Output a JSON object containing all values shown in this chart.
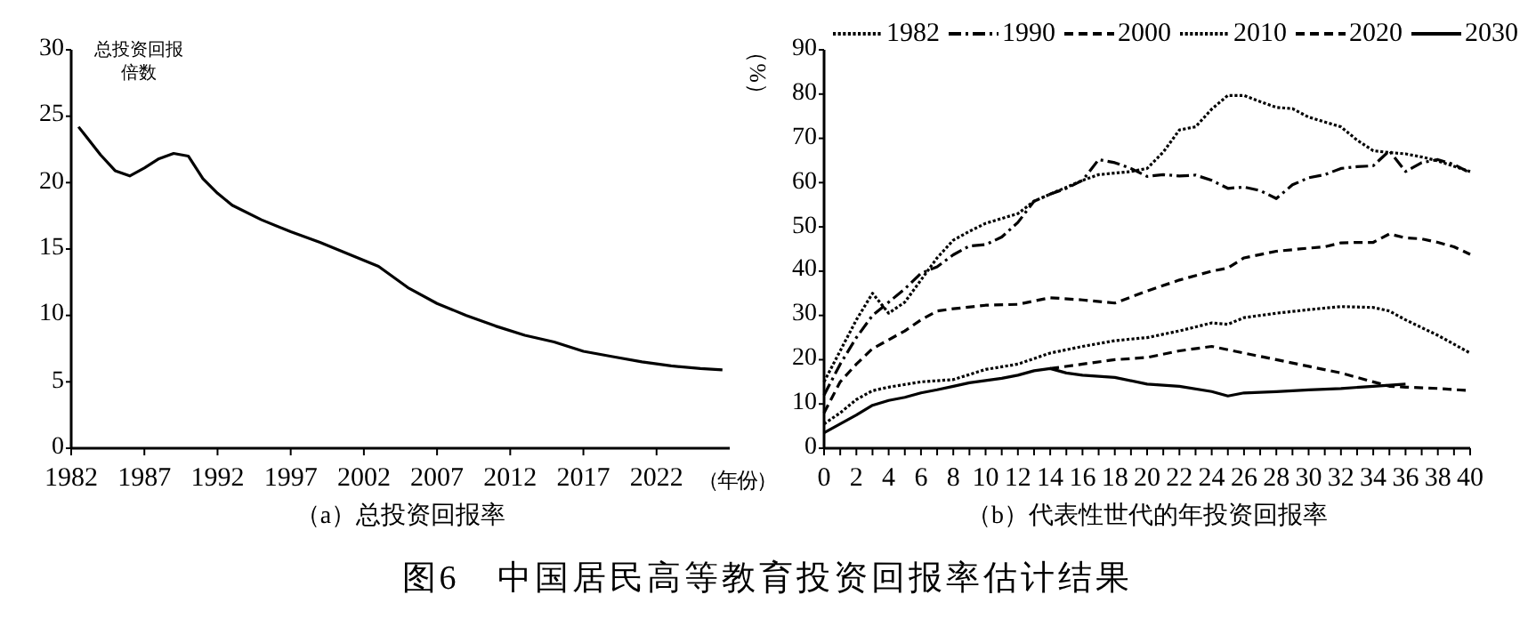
{
  "chart_data": [
    {
      "type": "line",
      "title": "（a）总投资回报率",
      "ylabel": "总投资回报倍数",
      "xlabel": "（年份）",
      "annotations": [
        "图6　中国居民高等教育投资回报率估计结果"
      ],
      "xlim": [
        1982,
        2027
      ],
      "xticks": [
        1982,
        1987,
        1992,
        1997,
        2002,
        2007,
        2012,
        2017,
        2022
      ],
      "ylim": [
        0,
        30
      ],
      "yticks": [
        0,
        5,
        10,
        15,
        20,
        25,
        30
      ],
      "legend": false,
      "series": [
        {
          "color": "#000000",
          "line_style": "solid",
          "x": [
            1982.5,
            1983,
            1984,
            1985,
            1986,
            1987,
            1988,
            1989,
            1990,
            1991,
            1992,
            1993,
            1995,
            1997,
            1999,
            2001,
            2003,
            2005,
            2007,
            2009,
            2011,
            2013,
            2015,
            2017,
            2019,
            2021,
            2023,
            2025,
            2026.5
          ],
          "values": [
            24.2,
            23.5,
            22.1,
            20.9,
            20.5,
            21.1,
            21.8,
            22.2,
            22.0,
            20.3,
            19.2,
            18.3,
            17.2,
            16.3,
            15.5,
            14.6,
            13.7,
            12.1,
            10.9,
            10.0,
            9.2,
            8.5,
            8.0,
            7.3,
            6.9,
            6.5,
            6.2,
            6.0,
            5.9
          ]
        }
      ]
    },
    {
      "type": "line",
      "title": "（b）代表性世代的年投资回报率",
      "ylabel": "（%）",
      "legend": "top",
      "xlim": [
        0,
        40
      ],
      "xticks": [
        0,
        {
          "value": 1,
          "label": null
        },
        2,
        {
          "value": 3,
          "label": null
        },
        4,
        {
          "value": 5,
          "label": null
        },
        6,
        {
          "value": 7,
          "label": null
        },
        8,
        {
          "value": 9,
          "label": null
        },
        10,
        {
          "value": 11,
          "label": null
        },
        12,
        {
          "value": 13,
          "label": null
        },
        14,
        {
          "value": 15,
          "label": null
        },
        16,
        {
          "value": 17,
          "label": null
        },
        18,
        {
          "value": 19,
          "label": null
        },
        20,
        {
          "value": 21,
          "label": null
        },
        22,
        {
          "value": 23,
          "label": null
        },
        24,
        {
          "value": 25,
          "label": null
        },
        26,
        {
          "value": 27,
          "label": null
        },
        28,
        {
          "value": 29,
          "label": null
        },
        30,
        {
          "value": 31,
          "label": null
        },
        32,
        {
          "value": 33,
          "label": null
        },
        34,
        {
          "value": 35,
          "label": null
        },
        36,
        {
          "value": 37,
          "label": null
        },
        38,
        {
          "value": 39,
          "label": null
        },
        40
      ],
      "ylim": [
        0,
        90
      ],
      "yticks": [
        0,
        10,
        20,
        30,
        40,
        50,
        60,
        70,
        80,
        90
      ],
      "series": [
        {
          "name": "1982",
          "color": "#000000",
          "line_style": "dotted",
          "x": [
            0,
            1,
            2,
            3,
            4,
            5,
            6,
            7,
            8,
            9,
            10,
            12,
            13,
            14,
            16,
            17,
            19,
            20,
            21,
            22,
            23,
            24,
            25,
            26,
            27,
            28,
            29,
            30,
            32,
            33,
            34,
            35,
            36,
            37,
            38,
            40
          ],
          "values": [
            15,
            22,
            29,
            35,
            30.5,
            33,
            38,
            43,
            47,
            49,
            50.8,
            53,
            55.8,
            57.4,
            60.5,
            61.8,
            62.5,
            63.2,
            66.9,
            71.9,
            72.6,
            76.6,
            79.7,
            79.7,
            78.3,
            77,
            76.7,
            74.8,
            72.6,
            69.6,
            67.2,
            66.8,
            66.5,
            65.8,
            64.9,
            62.5
          ]
        },
        {
          "name": "1990",
          "color": "#000000",
          "line_style": "dashdot",
          "x": [
            0,
            1,
            2,
            3,
            4,
            5,
            6,
            7,
            8,
            9,
            10,
            11,
            12,
            13,
            14,
            15,
            16,
            17,
            18,
            19,
            20,
            21,
            22,
            23,
            24,
            25,
            26,
            27,
            28,
            29,
            30,
            31,
            32,
            33,
            34,
            35,
            36,
            37,
            38,
            39,
            40
          ],
          "values": [
            12,
            19,
            25,
            30,
            33,
            36,
            39.5,
            41,
            43.7,
            45.7,
            46,
            47.7,
            51,
            55.8,
            57.4,
            58.7,
            60.5,
            65.2,
            64.5,
            63.2,
            61.4,
            61.8,
            61.5,
            61.7,
            60.5,
            58.7,
            59,
            58.2,
            56.4,
            59.5,
            61.1,
            61.8,
            63.2,
            63.6,
            63.8,
            67.2,
            62.5,
            64.5,
            65.2,
            64.1,
            62.2
          ]
        },
        {
          "name": "2000",
          "color": "#000000",
          "line_style": "dashed",
          "x": [
            0,
            1,
            2,
            3,
            4,
            5,
            6,
            7,
            8,
            10,
            12,
            14,
            16,
            18,
            20,
            22,
            24,
            25,
            26,
            28,
            30,
            31,
            32,
            33,
            34,
            35,
            36,
            37,
            38,
            39,
            40
          ],
          "values": [
            8,
            15,
            19,
            22.5,
            24.5,
            26.5,
            29,
            31,
            31.5,
            32.3,
            32.5,
            34,
            33.5,
            32.8,
            35.5,
            38,
            40,
            40.7,
            43,
            44.5,
            45.2,
            45.5,
            46.4,
            46.5,
            46.5,
            48.4,
            47.5,
            47.3,
            46.5,
            45.5,
            43.8
          ]
        },
        {
          "name": "2010",
          "color": "#000000",
          "line_style": "dotted",
          "x": [
            0,
            1,
            2,
            3,
            4,
            6,
            8,
            10,
            12,
            14,
            16,
            18,
            20,
            22,
            24,
            25,
            26,
            28,
            30,
            32,
            34,
            35,
            36,
            38,
            40
          ],
          "values": [
            5.5,
            8,
            11,
            13,
            13.8,
            15,
            15.5,
            17.8,
            19,
            21.5,
            23,
            24.3,
            25,
            26.5,
            28.3,
            28,
            29.5,
            30.5,
            31.3,
            32,
            31.8,
            31,
            29,
            25.5,
            21.5
          ]
        },
        {
          "name": "2020",
          "color": "#000000",
          "line_style": "dashed",
          "x": [
            14,
            16,
            18,
            20,
            22,
            24,
            26,
            28,
            30,
            32,
            34,
            35,
            36,
            38,
            40
          ],
          "values": [
            18,
            19,
            20,
            20.5,
            22,
            23,
            21.5,
            20,
            18.5,
            17,
            15,
            14,
            13.8,
            13.5,
            13
          ]
        },
        {
          "name": "2030",
          "color": "#000000",
          "line_style": "solid",
          "x": [
            0,
            1,
            2,
            3,
            4,
            5,
            6,
            7,
            8,
            9,
            10,
            11,
            12,
            13,
            14,
            15,
            16,
            18,
            20,
            22,
            24,
            25,
            26,
            28,
            30,
            32,
            34,
            36
          ],
          "values": [
            3.5,
            5.5,
            7.5,
            9.7,
            10.8,
            11.5,
            12.5,
            13.2,
            14,
            14.8,
            15.3,
            15.8,
            16.5,
            17.5,
            18,
            17,
            16.5,
            16,
            14.5,
            14,
            12.8,
            11.8,
            12.5,
            12.8,
            13.2,
            13.5,
            14,
            14.5
          ]
        }
      ]
    }
  ]
}
